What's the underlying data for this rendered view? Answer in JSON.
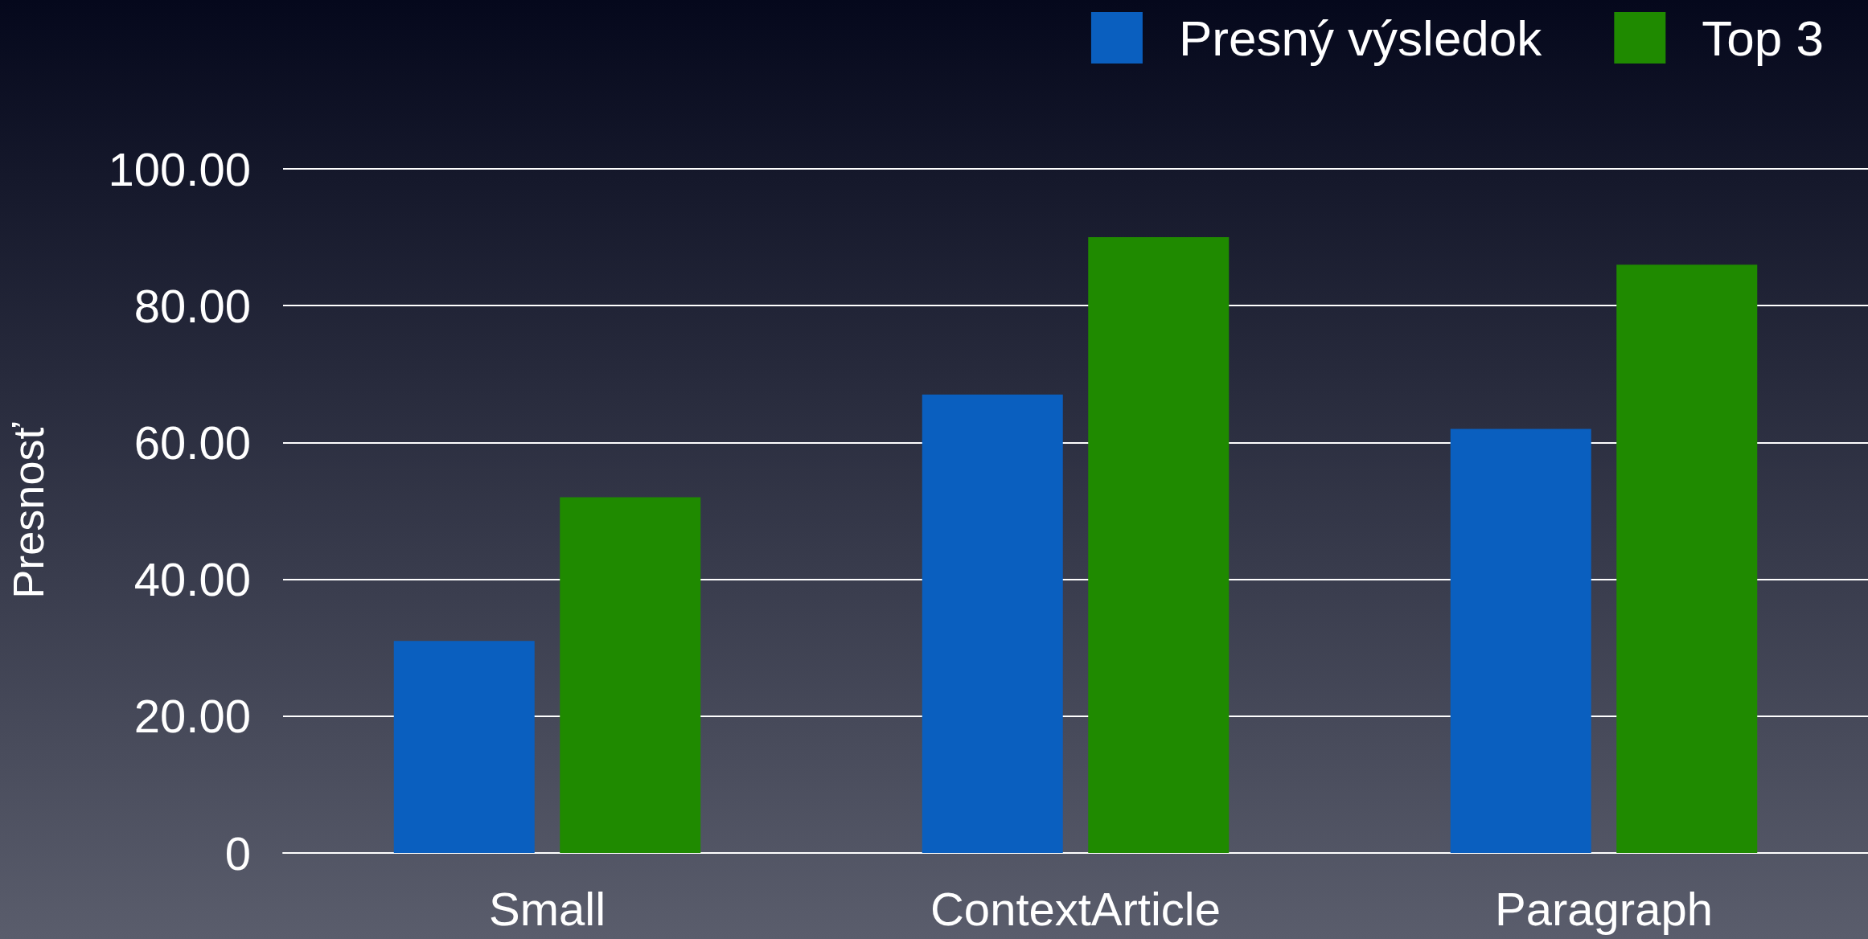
{
  "chart_data": {
    "type": "bar",
    "ylabel": "Presnosť",
    "categories": [
      "Small",
      "ContextArticle",
      "Paragraph"
    ],
    "series": [
      {
        "name": "Presný výsledok",
        "color": "#0a5fbf",
        "values": [
          31,
          67,
          62
        ]
      },
      {
        "name": "Top 3",
        "color": "#1f8a00",
        "values": [
          52,
          90,
          86
        ]
      }
    ],
    "ylim": [
      0,
      100
    ],
    "yticks": [
      0,
      {
        "value": 20,
        "label": "20.00"
      },
      {
        "value": 40,
        "label": "40.00"
      },
      {
        "value": 60,
        "label": "60.00"
      },
      {
        "value": 80,
        "label": "80.00"
      },
      {
        "value": 100,
        "label": "100.00"
      }
    ],
    "grid": "y",
    "legend": "top right"
  }
}
